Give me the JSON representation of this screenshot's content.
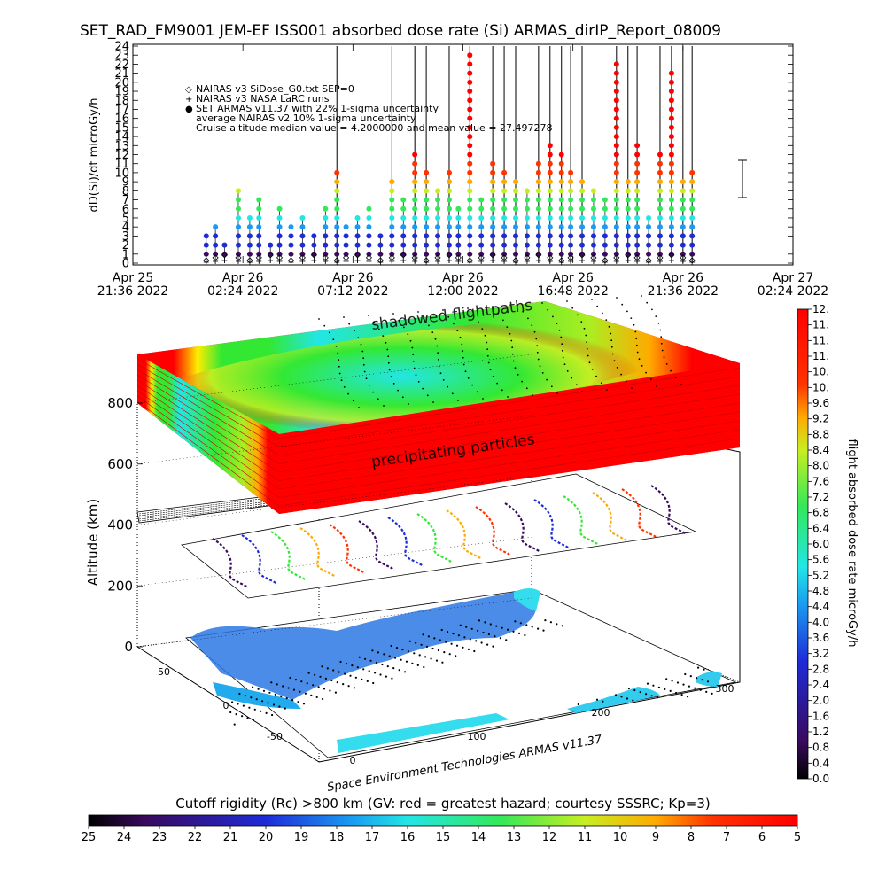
{
  "figure": {
    "title": "SET_RAD_FM9001  JEM-EF ISS001 absorbed dose rate (Si) ARMAS_dirIP_Report_08009",
    "credit": "Space Environment Technologies ARMAS v11.37"
  },
  "chart_data": [
    {
      "type": "scatter",
      "ylabel": "dD(Si)/dt microGy/h",
      "ylim": [
        0,
        24
      ],
      "yticks": [
        0,
        1,
        2,
        3,
        4,
        5,
        6,
        7,
        8,
        9,
        10,
        11,
        12,
        13,
        14,
        15,
        16,
        17,
        18,
        19,
        20,
        21,
        22,
        23,
        24
      ],
      "xticks": [
        {
          "date": "Apr 25",
          "time": "21:36",
          "year": "2022"
        },
        {
          "date": "Apr 26",
          "time": "02:24",
          "year": "2022"
        },
        {
          "date": "Apr 26",
          "time": "07:12",
          "year": "2022"
        },
        {
          "date": "Apr 26",
          "time": "12:00",
          "year": "2022"
        },
        {
          "date": "Apr 26",
          "time": "16:48",
          "year": "2022"
        },
        {
          "date": "Apr 26",
          "time": "21:36",
          "year": "2022"
        },
        {
          "date": "Apr 27",
          "time": "02:24",
          "year": "2022"
        }
      ],
      "xlim_hours": [
        0,
        28.8
      ],
      "legend": [
        "NAIRAS v3 SiDose_G0.txt SEP=0",
        "NAIRAS v3 NASA LaRC runs",
        "SET ARMAS v11.37 with 22% 1-sigma uncertainty",
        "average NAIRAS v2 10% 1-sigma uncertainty",
        "Cruise altitude median value = 4.2000000 and mean value = 27.497278"
      ],
      "legend_symbols": [
        "◇",
        "+",
        "●",
        "",
        ""
      ],
      "x_hours": [
        3.2,
        3.6,
        4.0,
        4.6,
        5.1,
        5.5,
        6.0,
        6.4,
        6.9,
        7.4,
        7.9,
        8.4,
        8.9,
        9.3,
        9.8,
        10.3,
        10.8,
        11.3,
        11.8,
        12.3,
        12.8,
        13.3,
        13.8,
        14.2,
        14.7,
        15.2,
        15.7,
        16.2,
        16.7,
        17.2,
        17.7,
        18.2,
        18.7,
        19.1,
        19.6,
        20.1,
        20.6,
        21.1,
        21.6,
        22.0,
        22.5,
        23.0,
        23.5,
        24.0,
        24.4
      ],
      "armas_peak_values": [
        3,
        4,
        2,
        8,
        5,
        7,
        2,
        6,
        4,
        5,
        3,
        6,
        10,
        4,
        5,
        6,
        3,
        9,
        7,
        12,
        10,
        8,
        10,
        6,
        23,
        7,
        11,
        10,
        9,
        8,
        11,
        13,
        12,
        10,
        9,
        8,
        7,
        22,
        9,
        13,
        5,
        12,
        21,
        9,
        10
      ],
      "series": [
        {
          "name": "NAIRAS v3 SiDose_G0.txt SEP=0",
          "symbol": "diamond",
          "values": [
            0.3,
            0.6,
            0.9,
            0.6,
            0.3,
            0.6,
            0.9,
            0.6,
            0.3,
            0.6,
            0.9,
            0.6,
            0.3,
            0.6,
            0.9,
            0.6,
            0.3,
            0.6,
            0.9,
            0.6,
            0.3,
            0.6,
            0.9,
            0.6,
            0.3,
            0.6,
            0.9,
            0.6,
            0.3,
            0.6,
            0.9,
            0.6,
            0.3,
            0.6,
            0.9,
            0.6,
            0.3,
            0.6,
            0.9,
            0.6,
            0.3,
            0.6,
            0.9,
            0.6,
            0.3
          ]
        },
        {
          "name": "NAIRAS v3 NASA LaRC runs",
          "symbol": "plus",
          "values": [
            0.1,
            0.2,
            0.3,
            0.2,
            0.1,
            0.2,
            0.3,
            0.2,
            0.1,
            0.2,
            0.3,
            0.2,
            0.1,
            0.2,
            0.3,
            0.2,
            0.1,
            0.2,
            0.3,
            0.2,
            0.1,
            0.2,
            0.3,
            0.2,
            0.1,
            0.2,
            0.3,
            0.2,
            0.1,
            0.2,
            0.3,
            0.2,
            0.1,
            0.2,
            0.3,
            0.2,
            0.1,
            0.2,
            0.3,
            0.2,
            0.1,
            0.2,
            0.3,
            0.2,
            0.1
          ]
        }
      ]
    },
    {
      "type": "3d-surface",
      "zlabel": "Altitude (km)",
      "zticks": [
        0,
        200,
        400,
        600,
        800
      ],
      "zlim": [
        0,
        900
      ],
      "lat_ticks": [
        -50,
        0,
        50
      ],
      "lon_ticks": [
        0,
        100,
        200,
        300
      ],
      "annotations": [
        "shadowed flightpaths",
        "precipitating particles"
      ],
      "colorbar": {
        "label": "flight absorbed dose rate microGy/h",
        "ticks": [
          "0.0",
          "0.4",
          "0.8",
          "1.2",
          "1.6",
          "2.0",
          "2.4",
          "2.8",
          "3.2",
          "3.6",
          "4.0",
          "4.4",
          "4.8",
          "5.2",
          "5.6",
          "6.0",
          "6.4",
          "6.8",
          "7.2",
          "7.6",
          "8.0",
          "8.4",
          "8.8",
          "9.2",
          "9.6",
          "10.",
          "10.",
          "11.",
          "11.",
          "11.",
          "12."
        ],
        "range": [
          0,
          12
        ],
        "colors": [
          "#000000",
          "#3a0a5e",
          "#1e2bd8",
          "#1a9af0",
          "#22e6e6",
          "#33e85a",
          "#c8ee20",
          "#ffaa00",
          "#ff3300",
          "#ff0000"
        ]
      }
    },
    {
      "type": "colorbar",
      "title": "Cutoff rigidity (Rc) >800 km (GV: red = greatest hazard; courtesy SSSRC; Kp=3)",
      "ticks": [
        25,
        24,
        23,
        22,
        21,
        20,
        19,
        18,
        17,
        16,
        15,
        14,
        13,
        12,
        11,
        10,
        9,
        8,
        7,
        6,
        5
      ],
      "range": [
        25,
        5
      ],
      "colors": [
        "#000000",
        "#3a0a5e",
        "#1e2bd8",
        "#1a9af0",
        "#22e6e6",
        "#33e85a",
        "#c8ee20",
        "#ffaa00",
        "#ff3300",
        "#ff0000"
      ]
    }
  ]
}
